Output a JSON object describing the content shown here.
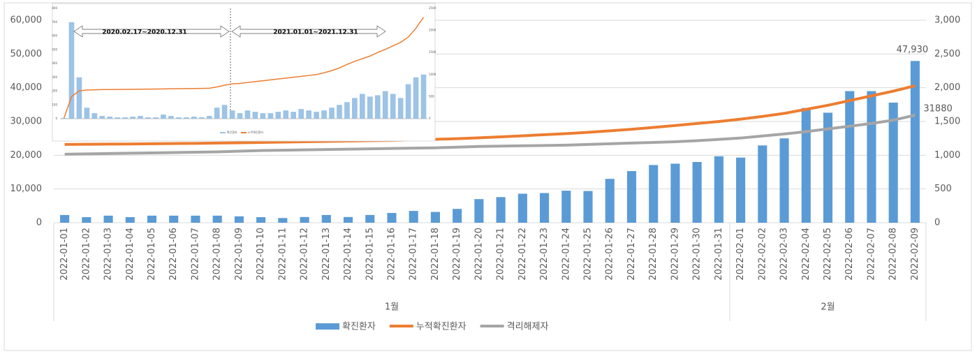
{
  "chart_data": [
    {
      "type": "combo",
      "categories": [
        "2022-01-01",
        "2022-01-02",
        "2022-01-03",
        "2022-01-04",
        "2022-01-05",
        "2022-01-06",
        "2022-01-07",
        "2022-01-08",
        "2022-01-09",
        "2022-01-10",
        "2022-01-11",
        "2022-01-12",
        "2022-01-13",
        "2022-01-14",
        "2022-01-15",
        "2022-01-16",
        "2022-01-17",
        "2022-01-18",
        "2022-01-19",
        "2022-01-20",
        "2022-01-21",
        "2022-01-22",
        "2022-01-23",
        "2022-01-24",
        "2022-01-25",
        "2022-01-26",
        "2022-01-27",
        "2022-01-28",
        "2022-01-29",
        "2022-01-30",
        "2022-01-31",
        "2022-02-01",
        "2022-02-02",
        "2022-02-03",
        "2022-02-04",
        "2022-02-05",
        "2022-02-06",
        "2022-02-07",
        "2022-02-08",
        "2022-02-09"
      ],
      "groups": [
        "1월",
        "2월"
      ],
      "series": [
        {
          "name": "확진환자",
          "kind": "bar",
          "color": "#5b9bd5",
          "values": [
            2300,
            1650,
            2100,
            1650,
            2100,
            2100,
            2100,
            2100,
            1900,
            1650,
            1400,
            1700,
            2300,
            1700,
            2300,
            2900,
            3500,
            3200,
            4100,
            7000,
            7600,
            8600,
            8800,
            9500,
            9400,
            13000,
            15300,
            17100,
            17500,
            18000,
            19700,
            19300,
            22900,
            25000,
            34000,
            32600,
            39000,
            39000,
            35600,
            47930
          ],
          "value_labels": [
            null,
            null,
            null,
            null,
            null,
            null,
            null,
            null,
            null,
            null,
            null,
            null,
            null,
            null,
            null,
            null,
            null,
            null,
            null,
            null,
            null,
            null,
            null,
            null,
            null,
            null,
            null,
            null,
            null,
            null,
            null,
            null,
            null,
            null,
            null,
            null,
            null,
            null,
            null,
            "47,930"
          ]
        },
        {
          "name": "누적확진환자",
          "kind": "line",
          "axis": "y2",
          "color": "#ed7d31",
          "values": [
            1160,
            1162,
            1165,
            1167,
            1170,
            1173,
            1176,
            1180,
            1185,
            1190,
            1195,
            1200,
            1205,
            1210,
            1215,
            1220,
            1228,
            1236,
            1245,
            1258,
            1272,
            1288,
            1305,
            1320,
            1340,
            1362,
            1385,
            1412,
            1440,
            1470,
            1500,
            1535,
            1575,
            1620,
            1680,
            1740,
            1810,
            1880,
            1950,
            2030
          ]
        },
        {
          "name": "격리해제자",
          "kind": "line",
          "color": "#a5a5a5",
          "values": [
            20300,
            20400,
            20500,
            20600,
            20700,
            20800,
            20900,
            21000,
            21200,
            21400,
            21500,
            21600,
            21700,
            21800,
            21900,
            22000,
            22100,
            22200,
            22400,
            22600,
            22700,
            22800,
            22900,
            23000,
            23200,
            23400,
            23600,
            23800,
            24000,
            24300,
            24700,
            25100,
            25700,
            26300,
            27000,
            27800,
            28600,
            29400,
            30400,
            31880
          ]
        }
      ],
      "ylim": [
        0,
        60000
      ],
      "yticks": [
        0,
        {
          "value": 10000,
          "label": "10,000"
        },
        {
          "value": 20000,
          "label": "20,000"
        },
        {
          "value": 30000,
          "label": "30,000"
        },
        {
          "value": 40000,
          "label": "40,000"
        },
        {
          "value": 50000,
          "label": "50,000"
        },
        {
          "value": 60000,
          "label": "60,000"
        }
      ],
      "y2lim": [
        0,
        3000
      ],
      "y2ticks": [
        0,
        500,
        {
          "value": 1000,
          "label": "1,000"
        },
        {
          "value": 1500,
          "label": "1,500"
        },
        {
          "value": 2000,
          "label": "2,000"
        },
        {
          "value": 2500,
          "label": "2,500"
        },
        {
          "value": 3000,
          "label": "3,000"
        }
      ],
      "grid": true,
      "legend": "bottom"
    },
    {
      "type": "inset",
      "annotations": [
        "2020.02.17~2020.12.31",
        "2021.01.01~2021.12.31"
      ],
      "series": [
        {
          "name": "확진환자",
          "kind": "bar",
          "color": "#9dc3e6",
          "values": [
            5,
            700,
            300,
            80,
            40,
            20,
            15,
            10,
            10,
            15,
            20,
            10,
            10,
            30,
            20,
            10,
            10,
            15,
            10,
            20,
            80,
            100,
            60,
            40,
            60,
            50,
            40,
            40,
            50,
            60,
            50,
            70,
            60,
            50,
            60,
            80,
            100,
            120,
            150,
            180,
            160,
            170,
            200,
            180,
            150,
            250,
            300,
            320
          ]
        },
        {
          "name": "누적확진환자",
          "kind": "line",
          "axis": "y2",
          "color": "#ed7d31",
          "values": [
            10,
            500,
            630,
            650,
            655,
            660,
            660,
            662,
            664,
            666,
            668,
            670,
            672,
            675,
            678,
            680,
            682,
            684,
            686,
            690,
            720,
            760,
            790,
            800,
            820,
            840,
            860,
            880,
            900,
            920,
            940,
            960,
            980,
            1000,
            1040,
            1090,
            1150,
            1230,
            1300,
            1360,
            1420,
            1500,
            1570,
            1650,
            1730,
            1850,
            2050,
            2300
          ]
        }
      ],
      "ylim": [
        0,
        800
      ],
      "yticks": [
        0,
        100,
        200,
        300,
        400,
        500,
        600,
        700,
        800
      ],
      "y2lim": [
        0,
        2500
      ],
      "y2ticks": [
        0,
        500,
        1000,
        1500,
        2000,
        2500
      ]
    }
  ]
}
